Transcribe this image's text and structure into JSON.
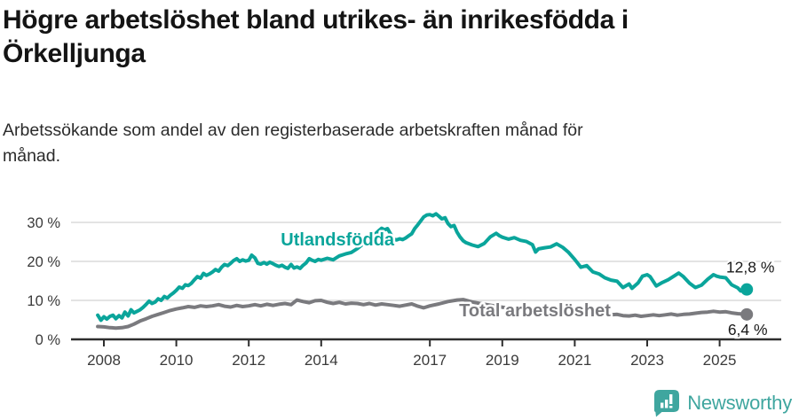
{
  "page": {
    "title": "Högre arbetslöshet bland utrikes- än inrikesfödda i\nÖrkelljunga",
    "subtitle": "Arbetssökande som andel av den registerbaserade arbetskraften månad för\nmånad."
  },
  "footer": {
    "brand": "Newsworthy",
    "logo_icon": "newsworthy-bar-chart-bubble-icon"
  },
  "colors": {
    "accent_teal": "#0aa59b",
    "series_gray": "#7a7a7e",
    "grid": "#dadada",
    "axis": "#2e2e2e",
    "tick_text": "#3a3a3a",
    "value_text": "#1a1a1a",
    "logo_teal": "#3fa69f",
    "background": "#ffffff"
  },
  "chart_data": {
    "type": "line",
    "title": "Högre arbetslöshet bland utrikes- än inrikesfödda i Örkelljunga",
    "subtitle": "Arbetssökande som andel av den registerbaserade arbetskraften månad för månad.",
    "grid": "horizontal",
    "legend_position": "inline-labels",
    "x_axis": {
      "tick_years": [
        2008,
        2010,
        2012,
        2014,
        2017,
        2019,
        2021,
        2023,
        2025
      ],
      "range": [
        2007.8,
        2025.75
      ]
    },
    "y_axis": {
      "tick_values": [
        0,
        10,
        20,
        30
      ],
      "tick_labels": [
        "0 %",
        "10 %",
        "20 %",
        "30 %"
      ],
      "unit": "%",
      "range": [
        0,
        33
      ]
    },
    "series": [
      {
        "name": "Utlandsfödda",
        "color": "#0aa59b",
        "end_label": "12,8 %",
        "end_value": 12.8,
        "end_label_side": "above",
        "label_pos": {
          "x": 2014.45,
          "y": 25.7
        },
        "points": [
          [
            2007.83,
            6.2
          ],
          [
            2007.92,
            4.9
          ],
          [
            2008.0,
            5.8
          ],
          [
            2008.08,
            5.2
          ],
          [
            2008.17,
            5.9
          ],
          [
            2008.25,
            6.2
          ],
          [
            2008.33,
            5.3
          ],
          [
            2008.42,
            6.1
          ],
          [
            2008.5,
            5.5
          ],
          [
            2008.58,
            7.0
          ],
          [
            2008.67,
            6.0
          ],
          [
            2008.75,
            7.6
          ],
          [
            2008.83,
            6.8
          ],
          [
            2008.92,
            7.2
          ],
          [
            2009.0,
            7.6
          ],
          [
            2009.08,
            8.2
          ],
          [
            2009.17,
            9.0
          ],
          [
            2009.25,
            9.8
          ],
          [
            2009.33,
            9.2
          ],
          [
            2009.42,
            9.6
          ],
          [
            2009.5,
            10.4
          ],
          [
            2009.58,
            10.0
          ],
          [
            2009.67,
            11.0
          ],
          [
            2009.75,
            10.6
          ],
          [
            2009.83,
            11.3
          ],
          [
            2009.92,
            11.9
          ],
          [
            2010.0,
            12.6
          ],
          [
            2010.08,
            13.4
          ],
          [
            2010.17,
            13.1
          ],
          [
            2010.25,
            14.0
          ],
          [
            2010.33,
            13.8
          ],
          [
            2010.42,
            14.4
          ],
          [
            2010.5,
            15.3
          ],
          [
            2010.58,
            16.1
          ],
          [
            2010.67,
            15.7
          ],
          [
            2010.75,
            16.9
          ],
          [
            2010.83,
            16.4
          ],
          [
            2010.92,
            16.8
          ],
          [
            2011.0,
            17.3
          ],
          [
            2011.08,
            17.9
          ],
          [
            2011.17,
            17.5
          ],
          [
            2011.25,
            18.5
          ],
          [
            2011.33,
            19.2
          ],
          [
            2011.42,
            18.9
          ],
          [
            2011.5,
            19.5
          ],
          [
            2011.58,
            20.2
          ],
          [
            2011.67,
            20.7
          ],
          [
            2011.75,
            20.0
          ],
          [
            2011.83,
            20.4
          ],
          [
            2011.92,
            20.1
          ],
          [
            2012.0,
            20.3
          ],
          [
            2012.08,
            21.6
          ],
          [
            2012.17,
            20.9
          ],
          [
            2012.25,
            19.5
          ],
          [
            2012.33,
            19.3
          ],
          [
            2012.42,
            19.7
          ],
          [
            2012.5,
            19.3
          ],
          [
            2012.58,
            19.8
          ],
          [
            2012.67,
            19.4
          ],
          [
            2012.75,
            19.0
          ],
          [
            2012.83,
            18.7
          ],
          [
            2012.92,
            19.0
          ],
          [
            2013.0,
            18.5
          ],
          [
            2013.08,
            18.2
          ],
          [
            2013.17,
            19.2
          ],
          [
            2013.25,
            18.3
          ],
          [
            2013.33,
            18.6
          ],
          [
            2013.42,
            18.2
          ],
          [
            2013.5,
            19.0
          ],
          [
            2013.58,
            19.6
          ],
          [
            2013.67,
            20.7
          ],
          [
            2013.75,
            20.3
          ],
          [
            2013.83,
            20.0
          ],
          [
            2013.92,
            20.5
          ],
          [
            2014.0,
            20.3
          ],
          [
            2014.17,
            20.8
          ],
          [
            2014.33,
            20.4
          ],
          [
            2014.5,
            21.4
          ],
          [
            2014.67,
            21.9
          ],
          [
            2014.83,
            22.3
          ],
          [
            2015.0,
            23.3
          ],
          [
            2015.17,
            24.6
          ],
          [
            2015.33,
            25.9
          ],
          [
            2015.5,
            27.1
          ],
          [
            2015.58,
            27.8
          ],
          [
            2015.67,
            28.5
          ],
          [
            2015.75,
            28.1
          ],
          [
            2015.83,
            28.4
          ],
          [
            2015.92,
            27.0
          ],
          [
            2016.0,
            25.7
          ],
          [
            2016.08,
            25.5
          ],
          [
            2016.17,
            25.8
          ],
          [
            2016.25,
            25.6
          ],
          [
            2016.33,
            26.0
          ],
          [
            2016.42,
            26.6
          ],
          [
            2016.5,
            27.1
          ],
          [
            2016.58,
            28.4
          ],
          [
            2016.67,
            29.4
          ],
          [
            2016.75,
            30.4
          ],
          [
            2016.83,
            31.4
          ],
          [
            2016.92,
            31.9
          ],
          [
            2017.0,
            32.0
          ],
          [
            2017.08,
            31.7
          ],
          [
            2017.17,
            32.2
          ],
          [
            2017.25,
            31.6
          ],
          [
            2017.33,
            30.9
          ],
          [
            2017.42,
            31.2
          ],
          [
            2017.5,
            29.7
          ],
          [
            2017.58,
            28.9
          ],
          [
            2017.67,
            29.2
          ],
          [
            2017.75,
            27.5
          ],
          [
            2017.83,
            26.3
          ],
          [
            2017.92,
            25.3
          ],
          [
            2018.0,
            24.8
          ],
          [
            2018.17,
            24.2
          ],
          [
            2018.33,
            23.8
          ],
          [
            2018.5,
            24.6
          ],
          [
            2018.67,
            26.3
          ],
          [
            2018.83,
            27.2
          ],
          [
            2018.92,
            26.6
          ],
          [
            2019.0,
            26.2
          ],
          [
            2019.17,
            25.7
          ],
          [
            2019.33,
            26.1
          ],
          [
            2019.5,
            25.4
          ],
          [
            2019.67,
            25.1
          ],
          [
            2019.83,
            24.3
          ],
          [
            2019.92,
            22.4
          ],
          [
            2020.0,
            23.2
          ],
          [
            2020.17,
            23.5
          ],
          [
            2020.33,
            23.7
          ],
          [
            2020.5,
            24.5
          ],
          [
            2020.67,
            23.6
          ],
          [
            2020.83,
            22.3
          ],
          [
            2021.0,
            20.5
          ],
          [
            2021.17,
            18.5
          ],
          [
            2021.33,
            18.9
          ],
          [
            2021.5,
            17.3
          ],
          [
            2021.67,
            16.8
          ],
          [
            2021.83,
            15.8
          ],
          [
            2022.0,
            15.2
          ],
          [
            2022.17,
            14.9
          ],
          [
            2022.33,
            13.3
          ],
          [
            2022.5,
            14.2
          ],
          [
            2022.58,
            13.1
          ],
          [
            2022.75,
            14.5
          ],
          [
            2022.87,
            16.2
          ],
          [
            2023.0,
            16.6
          ],
          [
            2023.08,
            16.1
          ],
          [
            2023.25,
            13.7
          ],
          [
            2023.42,
            14.6
          ],
          [
            2023.58,
            15.3
          ],
          [
            2023.75,
            16.3
          ],
          [
            2023.87,
            17.0
          ],
          [
            2024.0,
            16.1
          ],
          [
            2024.17,
            14.4
          ],
          [
            2024.33,
            13.3
          ],
          [
            2024.5,
            13.9
          ],
          [
            2024.67,
            15.4
          ],
          [
            2024.83,
            16.6
          ],
          [
            2024.92,
            16.2
          ],
          [
            2025.0,
            16.0
          ],
          [
            2025.17,
            15.8
          ],
          [
            2025.33,
            14.0
          ],
          [
            2025.5,
            13.2
          ],
          [
            2025.58,
            12.4
          ],
          [
            2025.75,
            12.8
          ]
        ]
      },
      {
        "name": "Total arbetslöshet",
        "color": "#7a7a7e",
        "end_label": "6,4 %",
        "end_value": 6.4,
        "end_label_side": "below",
        "label_pos": {
          "x": 2019.9,
          "y": 7.5
        },
        "points": [
          [
            2007.83,
            3.3
          ],
          [
            2008.0,
            3.2
          ],
          [
            2008.17,
            3.0
          ],
          [
            2008.33,
            2.9
          ],
          [
            2008.5,
            3.0
          ],
          [
            2008.67,
            3.3
          ],
          [
            2008.83,
            3.9
          ],
          [
            2009.0,
            4.7
          ],
          [
            2009.17,
            5.3
          ],
          [
            2009.33,
            5.9
          ],
          [
            2009.5,
            6.4
          ],
          [
            2009.67,
            6.9
          ],
          [
            2009.83,
            7.4
          ],
          [
            2010.0,
            7.8
          ],
          [
            2010.17,
            8.1
          ],
          [
            2010.33,
            8.4
          ],
          [
            2010.5,
            8.2
          ],
          [
            2010.67,
            8.6
          ],
          [
            2010.83,
            8.4
          ],
          [
            2011.0,
            8.6
          ],
          [
            2011.17,
            8.9
          ],
          [
            2011.33,
            8.5
          ],
          [
            2011.5,
            8.3
          ],
          [
            2011.67,
            8.7
          ],
          [
            2011.83,
            8.4
          ],
          [
            2012.0,
            8.6
          ],
          [
            2012.17,
            8.9
          ],
          [
            2012.33,
            8.6
          ],
          [
            2012.5,
            9.0
          ],
          [
            2012.67,
            8.7
          ],
          [
            2012.83,
            9.0
          ],
          [
            2013.0,
            9.2
          ],
          [
            2013.17,
            8.9
          ],
          [
            2013.33,
            10.1
          ],
          [
            2013.5,
            9.7
          ],
          [
            2013.67,
            9.4
          ],
          [
            2013.83,
            9.9
          ],
          [
            2014.0,
            10.0
          ],
          [
            2014.17,
            9.5
          ],
          [
            2014.33,
            9.2
          ],
          [
            2014.5,
            9.5
          ],
          [
            2014.67,
            9.1
          ],
          [
            2014.83,
            9.3
          ],
          [
            2015.0,
            9.2
          ],
          [
            2015.17,
            8.9
          ],
          [
            2015.33,
            9.2
          ],
          [
            2015.5,
            8.8
          ],
          [
            2015.67,
            9.1
          ],
          [
            2015.83,
            8.9
          ],
          [
            2016.0,
            8.7
          ],
          [
            2016.17,
            8.5
          ],
          [
            2016.33,
            8.8
          ],
          [
            2016.5,
            9.1
          ],
          [
            2016.67,
            8.5
          ],
          [
            2016.83,
            8.1
          ],
          [
            2017.0,
            8.6
          ],
          [
            2017.25,
            9.1
          ],
          [
            2017.5,
            9.7
          ],
          [
            2017.75,
            10.1
          ],
          [
            2017.92,
            10.2
          ],
          [
            2018.17,
            9.6
          ],
          [
            2018.5,
            9.0
          ],
          [
            2018.83,
            8.5
          ],
          [
            2019.17,
            8.0
          ],
          [
            2019.5,
            7.6
          ],
          [
            2019.83,
            7.4
          ],
          [
            2020.17,
            7.9
          ],
          [
            2020.5,
            7.7
          ],
          [
            2020.83,
            7.3
          ],
          [
            2021.17,
            6.9
          ],
          [
            2021.5,
            6.6
          ],
          [
            2021.83,
            6.4
          ],
          [
            2022.0,
            6.3
          ],
          [
            2022.17,
            6.4
          ],
          [
            2022.33,
            6.1
          ],
          [
            2022.5,
            6.0
          ],
          [
            2022.67,
            6.2
          ],
          [
            2022.83,
            5.9
          ],
          [
            2023.0,
            6.1
          ],
          [
            2023.17,
            6.3
          ],
          [
            2023.33,
            6.1
          ],
          [
            2023.5,
            6.3
          ],
          [
            2023.67,
            6.5
          ],
          [
            2023.83,
            6.2
          ],
          [
            2024.0,
            6.4
          ],
          [
            2024.17,
            6.5
          ],
          [
            2024.33,
            6.7
          ],
          [
            2024.5,
            6.9
          ],
          [
            2024.67,
            7.0
          ],
          [
            2024.83,
            7.2
          ],
          [
            2025.0,
            7.0
          ],
          [
            2025.17,
            7.1
          ],
          [
            2025.33,
            6.8
          ],
          [
            2025.5,
            6.6
          ],
          [
            2025.75,
            6.4
          ]
        ]
      }
    ]
  }
}
